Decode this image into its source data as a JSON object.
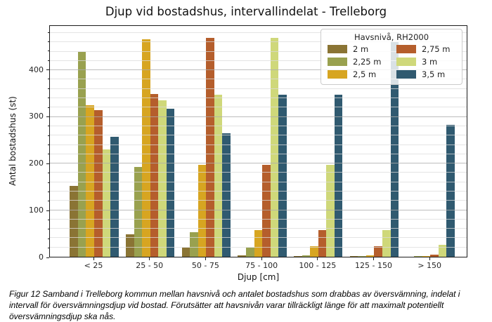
{
  "title": "Djup vid bostadshus, intervallindelat - Trelleborg",
  "caption": "Figur 12 Samband i Trelleborg kommun mellan havsnivå och antalet bostadshus som drabbas av översvämning, indelat i intervall för översvämningsdjup vid bostad. Förutsätter att havsnivån varar tillräckligt länge för att maximalt potentiellt översvämningsdjup ska nås.",
  "legend": {
    "title": "Havsnivå, RH2000",
    "position": "upper right",
    "columns": 2
  },
  "chart_data": {
    "type": "bar",
    "title": "Djup vid bostadshus, intervallindelat - Trelleborg",
    "xlabel": "Djup [cm]",
    "ylabel": "Antal bostadshus (st)",
    "ylim": [
      0,
      495
    ],
    "yticks": [
      0,
      100,
      200,
      300,
      400
    ],
    "minor_grid_step": 20,
    "grid": "horizontal major and minor lines, drawn over bars",
    "legend_title": "Havsnivå, RH2000",
    "legend_position": "upper right, 2 columns",
    "categories": [
      "< 25",
      "25 - 50",
      "50 - 75",
      "75 - 100",
      "100 - 125",
      "125 - 150",
      "> 150"
    ],
    "series": [
      {
        "name": "2 m",
        "color": "#8a7434",
        "values": [
          152,
          48,
          20,
          3,
          1,
          1,
          0
        ]
      },
      {
        "name": "2,25 m",
        "color": "#99a14f",
        "values": [
          440,
          193,
          53,
          20,
          3,
          2,
          1
        ]
      },
      {
        "name": "2,5 m",
        "color": "#d7a521",
        "values": [
          325,
          467,
          197,
          57,
          22,
          3,
          2
        ]
      },
      {
        "name": "2,75 m",
        "color": "#b55e2c",
        "values": [
          315,
          349,
          470,
          197,
          57,
          22,
          5
        ]
      },
      {
        "name": "3 m",
        "color": "#cfd87a",
        "values": [
          230,
          335,
          348,
          470,
          197,
          57,
          26
        ]
      },
      {
        "name": "3,5 m",
        "color": "#305a70",
        "values": [
          258,
          318,
          265,
          347,
          348,
          460,
          283
        ]
      }
    ]
  }
}
